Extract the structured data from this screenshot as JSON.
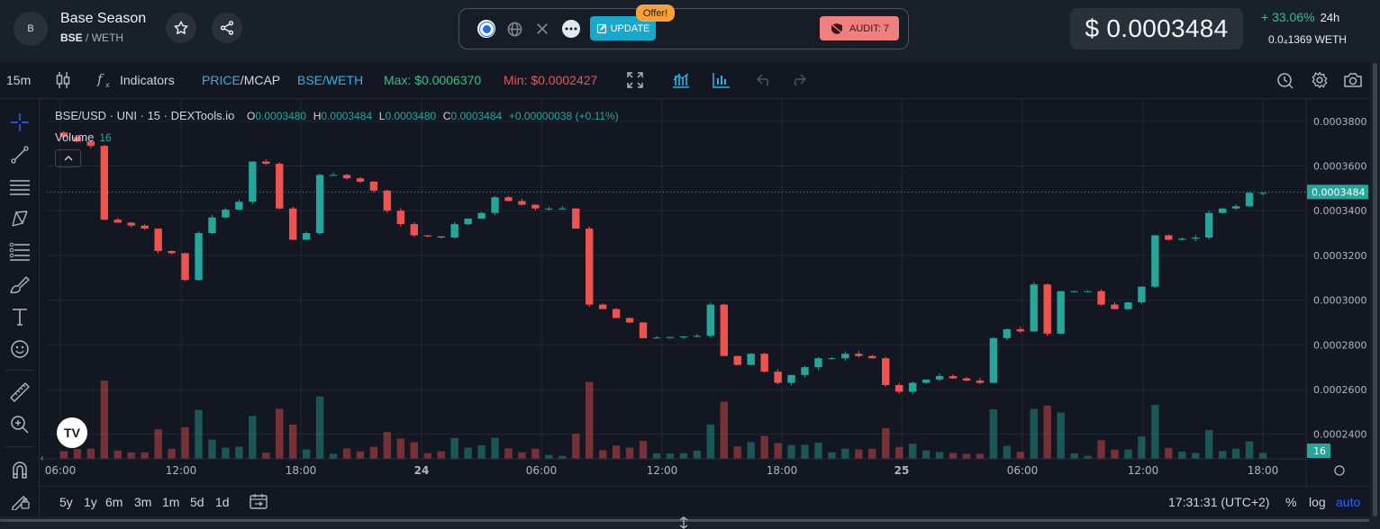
{
  "header": {
    "avatar_letter": "B",
    "token_name": "Base Season",
    "base_symbol": "BSE",
    "quote_symbol": "/ WETH",
    "update_label": "UPDATE",
    "offer_badge": "Offer!",
    "audit_label": "AUDIT: 7",
    "price": "$ 0.0003484",
    "change_24h": "+ 33.06%",
    "change_period": "24h",
    "eth_price": "0.0₄1369  WETH"
  },
  "toolbar": {
    "interval": "15m",
    "indicators_label": "Indicators",
    "price_label": "PRICE",
    "mcap_label": "MCAP",
    "pair_label": "BSE/WETH",
    "max_label": "Max: $0.0006370",
    "min_label": "Min: $0.0002427"
  },
  "legend": {
    "title": "BSE/USD · UNI · 15 · DEXTools.io",
    "o_key": "O",
    "o_val": "0.0003480",
    "h_key": "H",
    "h_val": "0.0003484",
    "l_key": "L",
    "l_val": "0.0003480",
    "c_key": "C",
    "c_val": "0.0003484",
    "change": "+0.00000038 (+0.11%)",
    "volume_label": "Volume",
    "volume_val": "16"
  },
  "chart_data": {
    "type": "candlestick",
    "interval": "15m",
    "y_axis_ticks": [
      "0.0003800",
      "0.0003600",
      "0.0003400",
      "0.0003200",
      "0.0003000",
      "0.0002800",
      "0.0002600",
      "0.0002400"
    ],
    "x_axis_ticks": [
      "06:00",
      "12:00",
      "18:00",
      "24",
      "06:00",
      "12:00",
      "18:00",
      "25",
      "06:00",
      "12:00",
      "18:00"
    ],
    "ylim": [
      0.000229,
      0.00039
    ],
    "current_price_label": "0.0003484",
    "current_volume_label": "16",
    "colors": {
      "up": "#26a69a",
      "down": "#ef5350",
      "grid": "#232733",
      "bg": "#131722"
    },
    "close_path": [
      [
        0,
        0.000375
      ],
      [
        3,
        0.000369
      ],
      [
        4,
        0.000336
      ],
      [
        7,
        0.000332
      ],
      [
        8,
        0.000322
      ],
      [
        9,
        0.000321
      ],
      [
        10,
        0.000309
      ],
      [
        11,
        0.00033
      ],
      [
        12,
        0.000337
      ],
      [
        14,
        0.000344
      ],
      [
        15,
        0.000362
      ],
      [
        16,
        0.000361
      ],
      [
        17,
        0.000341
      ],
      [
        18,
        0.000327
      ],
      [
        19,
        0.00033
      ],
      [
        20,
        0.000356
      ],
      [
        21,
        0.000356
      ],
      [
        23,
        0.000353
      ],
      [
        24,
        0.000349
      ],
      [
        25,
        0.00034
      ],
      [
        26,
        0.000334
      ],
      [
        27,
        0.000329
      ],
      [
        29,
        0.000328
      ],
      [
        30,
        0.000334
      ],
      [
        32,
        0.000339
      ],
      [
        33,
        0.000346
      ],
      [
        36,
        0.000341
      ],
      [
        38,
        0.000341
      ],
      [
        39,
        0.000332
      ],
      [
        40,
        0.000298
      ],
      [
        41,
        0.000296
      ],
      [
        42,
        0.000292
      ],
      [
        43,
        0.00029
      ],
      [
        44,
        0.000283
      ],
      [
        48,
        0.000284
      ],
      [
        49,
        0.000298
      ],
      [
        50,
        0.000275
      ],
      [
        51,
        0.000271
      ],
      [
        52,
        0.000276
      ],
      [
        53,
        0.000268
      ],
      [
        54,
        0.000263
      ],
      [
        56,
        0.00027
      ],
      [
        57,
        0.000274
      ],
      [
        58,
        0.000274
      ],
      [
        59,
        0.000276
      ],
      [
        61,
        0.000274
      ],
      [
        62,
        0.000262
      ],
      [
        63,
        0.000259
      ],
      [
        64,
        0.000263
      ],
      [
        66,
        0.000266
      ],
      [
        68,
        0.000264
      ],
      [
        69,
        0.000263
      ],
      [
        70,
        0.000283
      ],
      [
        71,
        0.000287
      ],
      [
        72,
        0.000286
      ],
      [
        73,
        0.000307
      ],
      [
        74,
        0.000285
      ],
      [
        75,
        0.000304
      ],
      [
        77,
        0.000304
      ],
      [
        78,
        0.000298
      ],
      [
        79,
        0.000296
      ],
      [
        80,
        0.000299
      ],
      [
        81,
        0.000306
      ],
      [
        82,
        0.000329
      ],
      [
        83,
        0.000327
      ],
      [
        85,
        0.000328
      ],
      [
        86,
        0.000339
      ],
      [
        87,
        0.000341
      ],
      [
        88,
        0.000342
      ],
      [
        89,
        0.000348
      ],
      [
        90,
        0.000348
      ]
    ]
  },
  "bottom": {
    "ranges": [
      "5y",
      "1y",
      "6m",
      "3m",
      "1m",
      "5d",
      "1d"
    ],
    "time": "17:31:31 (UTC+2)",
    "pct": "%",
    "log": "log",
    "auto": "auto"
  }
}
